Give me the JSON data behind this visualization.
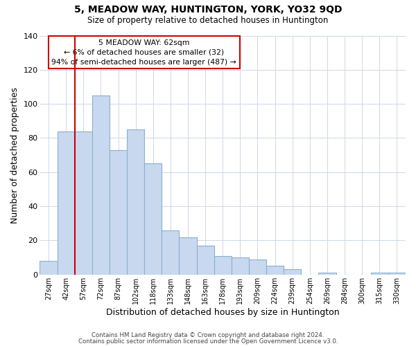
{
  "title": "5, MEADOW WAY, HUNTINGTON, YORK, YO32 9QD",
  "subtitle": "Size of property relative to detached houses in Huntington",
  "xlabel": "Distribution of detached houses by size in Huntington",
  "ylabel": "Number of detached properties",
  "bar_labels": [
    "27sqm",
    "42sqm",
    "57sqm",
    "72sqm",
    "87sqm",
    "102sqm",
    "118sqm",
    "133sqm",
    "148sqm",
    "163sqm",
    "178sqm",
    "193sqm",
    "209sqm",
    "224sqm",
    "239sqm",
    "254sqm",
    "269sqm",
    "284sqm",
    "300sqm",
    "315sqm",
    "330sqm"
  ],
  "bar_values": [
    8,
    84,
    84,
    105,
    73,
    85,
    65,
    26,
    22,
    17,
    11,
    10,
    9,
    5,
    3,
    0,
    1,
    0,
    0,
    1,
    1
  ],
  "bar_color": "#c8d8ee",
  "bar_edgecolor": "#8ab0d0",
  "vline_index": 2,
  "vline_color": "#cc0000",
  "ylim": [
    0,
    140
  ],
  "yticks": [
    0,
    20,
    40,
    60,
    80,
    100,
    120,
    140
  ],
  "annotation_title": "5 MEADOW WAY: 62sqm",
  "annotation_line1": "← 6% of detached houses are smaller (32)",
  "annotation_line2": "94% of semi-detached houses are larger (487) →",
  "annotation_box_color": "#ffffff",
  "annotation_box_edgecolor": "#cc0000",
  "footer_line1": "Contains HM Land Registry data © Crown copyright and database right 2024.",
  "footer_line2": "Contains public sector information licensed under the Open Government Licence v3.0.",
  "background_color": "#ffffff",
  "grid_color": "#cdd8e8"
}
